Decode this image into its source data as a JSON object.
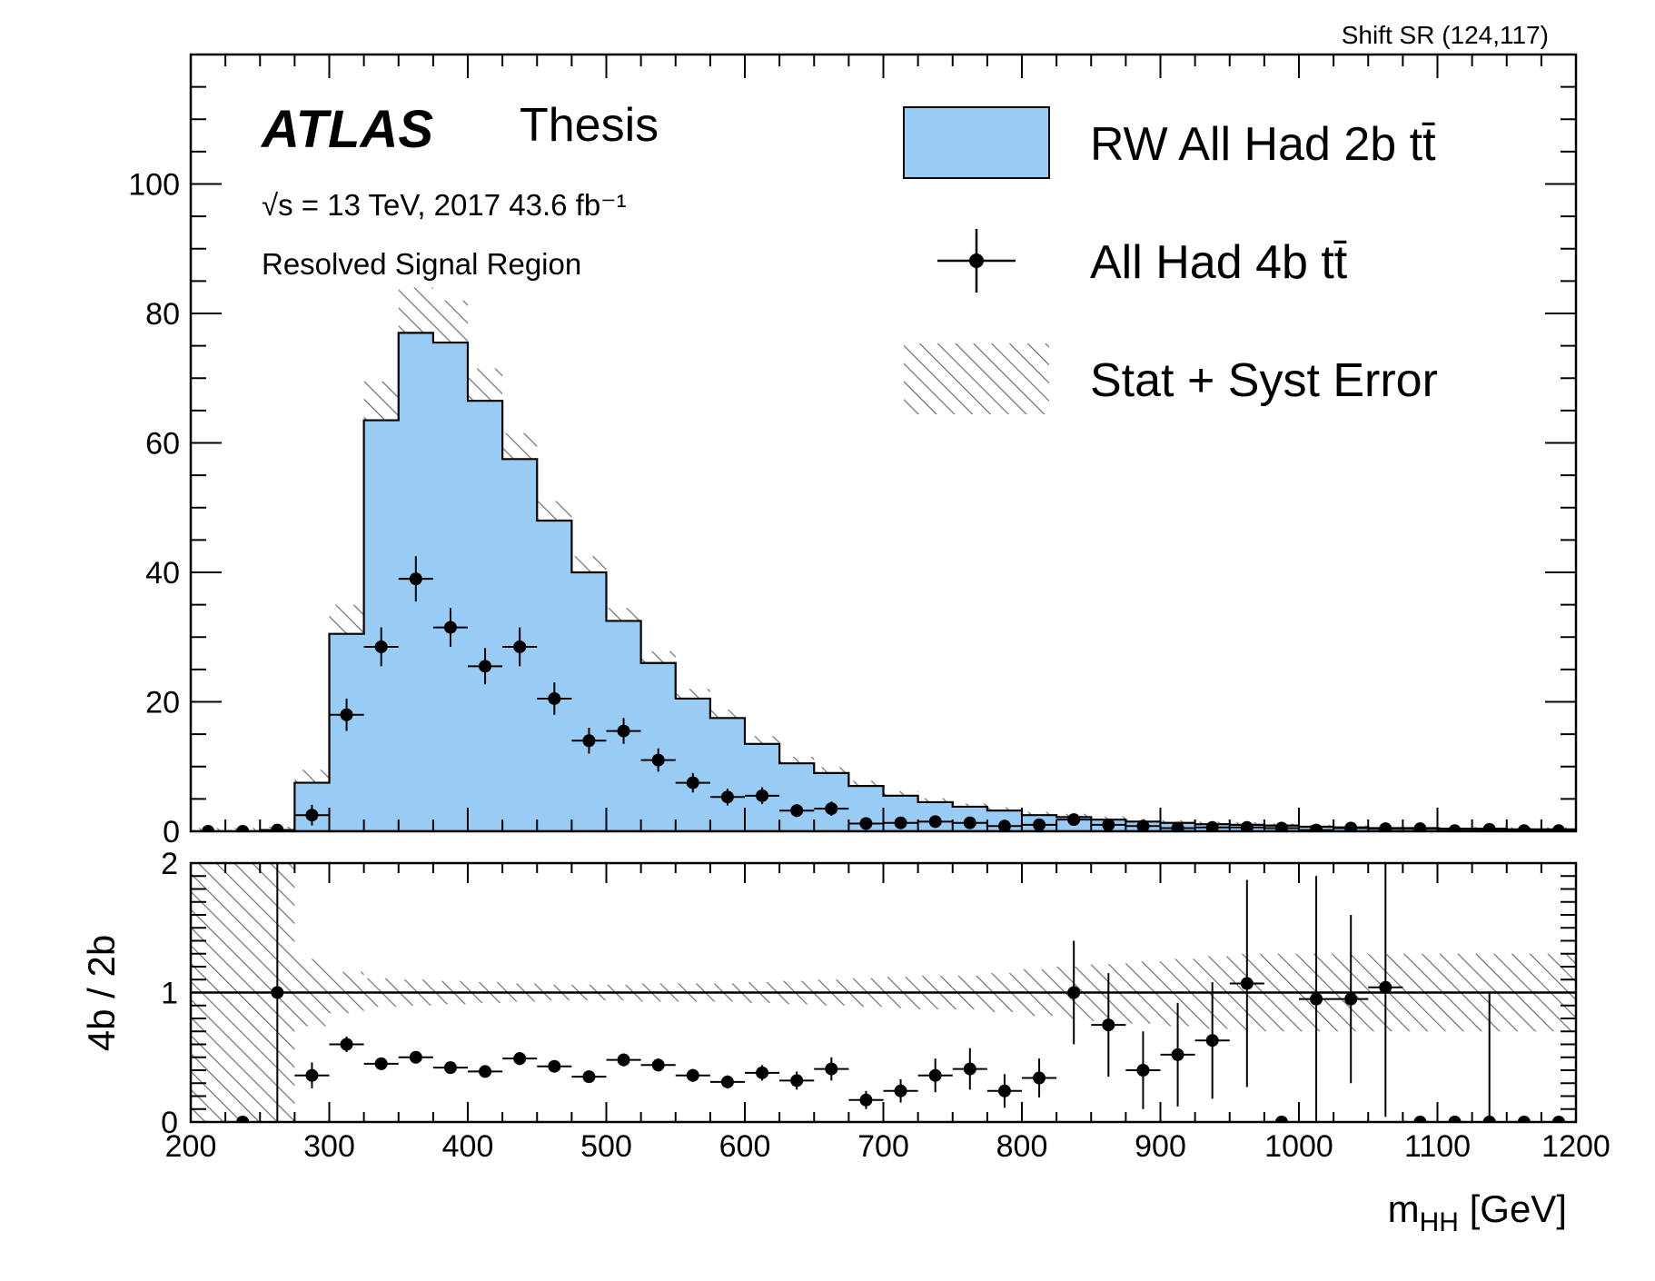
{
  "corner_label": "Shift SR (124,117)",
  "atlas": {
    "logo": "ATLAS",
    "tag": "Thesis"
  },
  "info": {
    "energy_line": "√s = 13 TeV, 2017 43.6 fb⁻¹",
    "region": "Resolved Signal Region"
  },
  "legend": [
    {
      "key": "background",
      "label": "RW All Had 2b tt̄"
    },
    {
      "key": "data",
      "label": "All Had 4b tt̄"
    },
    {
      "key": "uncertainty",
      "label": "Stat + Syst Error"
    }
  ],
  "colors": {
    "fill": "#99ccf5",
    "hatch": "#6e6e6e",
    "marker": "#000000"
  },
  "chart_data": [
    {
      "type": "histogram",
      "panel": "main",
      "xlabel": "",
      "ylabel": "",
      "xlim": [
        200,
        1200
      ],
      "ylim": [
        0,
        120
      ],
      "yticks": [
        0,
        20,
        40,
        60,
        80,
        100
      ],
      "bin_width": 25,
      "bin_edges_start": 200,
      "series": [
        {
          "name": "RW All Had 2b tt̄",
          "kind": "stacked-fill",
          "values": [
            0,
            0,
            0.2,
            7.5,
            30.5,
            63.5,
            77,
            75.5,
            66.5,
            57.5,
            48,
            40,
            32.5,
            26,
            20.5,
            17.5,
            13.5,
            10.5,
            9,
            7,
            5.5,
            4.5,
            3.8,
            3.2,
            2.5,
            2.2,
            1.8,
            1.5,
            1.3,
            1.1,
            1.0,
            0.9,
            0.7,
            0.6,
            0.5,
            0.5,
            0.4,
            0.4,
            0.3,
            0.3
          ],
          "uncertainty": [
            0.5,
            0.5,
            0.5,
            2,
            4.5,
            6,
            7,
            6.5,
            5,
            4,
            3,
            2.5,
            2,
            1.8,
            1.5,
            1.3,
            1.2,
            1,
            0.9,
            0.8,
            0.7,
            0.6,
            0.5,
            0.5,
            0.5,
            0.5,
            0.5,
            0.4,
            0.4,
            0.4,
            0.4,
            0.3,
            0.3,
            0.3,
            0.3,
            0.3,
            0.3,
            0.3,
            0.3,
            0.3
          ]
        },
        {
          "name": "All Had 4b tt̄",
          "kind": "points",
          "values": [
            0,
            0,
            0.2,
            2.5,
            18,
            28.5,
            39,
            31.5,
            25.5,
            28.5,
            20.5,
            14,
            15.5,
            11,
            7.5,
            5.3,
            5.5,
            3.2,
            3.5,
            1.2,
            1.3,
            1.5,
            1.3,
            0.8,
            1.0,
            1.8,
            1.0,
            0.8,
            0.5,
            0.6,
            0.6,
            0.5,
            0.2,
            0.5,
            0.4,
            0.4,
            0.1,
            0.3,
            0.1,
            0.1
          ],
          "errors": [
            0.3,
            0.3,
            0.4,
            1.6,
            2.5,
            3,
            3.5,
            3,
            2.8,
            3,
            2.5,
            2,
            2,
            1.8,
            1.5,
            1.3,
            1.3,
            1,
            1.1,
            0.7,
            0.7,
            0.8,
            0.7,
            0.6,
            0.6,
            0.8,
            0.6,
            0.5,
            0.4,
            0.4,
            0.4,
            0.4,
            0.3,
            0.4,
            0.3,
            0.3,
            0.2,
            0.3,
            0.2,
            0.2
          ]
        }
      ]
    },
    {
      "type": "scatter",
      "panel": "ratio",
      "xlabel": "m_HH [GeV]",
      "ylabel": "4b / 2b",
      "xlim": [
        200,
        1200
      ],
      "ylim": [
        0,
        2
      ],
      "yticks": [
        0,
        1,
        2
      ],
      "xticks": [
        200,
        300,
        400,
        500,
        600,
        700,
        800,
        900,
        1000,
        1100,
        1200
      ],
      "reference_line": 1,
      "band_halfwidth": [
        1.0,
        1.0,
        1.0,
        0.26,
        0.16,
        0.11,
        0.1,
        0.09,
        0.08,
        0.07,
        0.06,
        0.06,
        0.06,
        0.07,
        0.07,
        0.07,
        0.08,
        0.09,
        0.1,
        0.11,
        0.12,
        0.13,
        0.13,
        0.15,
        0.18,
        0.2,
        0.22,
        0.24,
        0.26,
        0.28,
        0.3,
        0.3,
        0.3,
        0.3,
        0.3,
        0.3,
        0.3,
        0.3,
        0.3,
        0.3
      ],
      "points": [
        {
          "x": 237.5,
          "y": 0.0,
          "err": 0.0
        },
        {
          "x": 262.5,
          "y": 1.0,
          "err": 1.0
        },
        {
          "x": 287.5,
          "y": 0.36,
          "err": 0.1
        },
        {
          "x": 312.5,
          "y": 0.6,
          "err": 0.06
        },
        {
          "x": 337.5,
          "y": 0.45,
          "err": 0.04
        },
        {
          "x": 362.5,
          "y": 0.5,
          "err": 0.04
        },
        {
          "x": 387.5,
          "y": 0.42,
          "err": 0.04
        },
        {
          "x": 412.5,
          "y": 0.39,
          "err": 0.04
        },
        {
          "x": 437.5,
          "y": 0.49,
          "err": 0.05
        },
        {
          "x": 462.5,
          "y": 0.43,
          "err": 0.04
        },
        {
          "x": 487.5,
          "y": 0.35,
          "err": 0.04
        },
        {
          "x": 512.5,
          "y": 0.48,
          "err": 0.05
        },
        {
          "x": 537.5,
          "y": 0.44,
          "err": 0.05
        },
        {
          "x": 562.5,
          "y": 0.36,
          "err": 0.05
        },
        {
          "x": 587.5,
          "y": 0.31,
          "err": 0.05
        },
        {
          "x": 612.5,
          "y": 0.38,
          "err": 0.06
        },
        {
          "x": 637.5,
          "y": 0.32,
          "err": 0.07
        },
        {
          "x": 662.5,
          "y": 0.41,
          "err": 0.09
        },
        {
          "x": 687.5,
          "y": 0.17,
          "err": 0.07
        },
        {
          "x": 712.5,
          "y": 0.24,
          "err": 0.09
        },
        {
          "x": 737.5,
          "y": 0.36,
          "err": 0.13
        },
        {
          "x": 762.5,
          "y": 0.41,
          "err": 0.16
        },
        {
          "x": 787.5,
          "y": 0.24,
          "err": 0.13
        },
        {
          "x": 812.5,
          "y": 0.34,
          "err": 0.15
        },
        {
          "x": 837.5,
          "y": 1.0,
          "err": 0.4
        },
        {
          "x": 862.5,
          "y": 0.75,
          "err": 0.4
        },
        {
          "x": 887.5,
          "y": 0.4,
          "err": 0.3
        },
        {
          "x": 912.5,
          "y": 0.52,
          "err": 0.4
        },
        {
          "x": 937.5,
          "y": 0.63,
          "err": 0.45
        },
        {
          "x": 962.5,
          "y": 1.07,
          "err": 0.8
        },
        {
          "x": 987.5,
          "y": 0.0,
          "err": 0.0
        },
        {
          "x": 1012.5,
          "y": 0.95,
          "err": 0.95
        },
        {
          "x": 1037.5,
          "y": 0.95,
          "err": 0.65
        },
        {
          "x": 1062.5,
          "y": 1.04,
          "err": 1.0
        },
        {
          "x": 1087.5,
          "y": 0.0,
          "err": 0.0
        },
        {
          "x": 1112.5,
          "y": 0.0,
          "err": 0.0
        },
        {
          "x": 1137.5,
          "y": 0.0,
          "err": 1.0
        },
        {
          "x": 1162.5,
          "y": 0.0,
          "err": 0.0
        },
        {
          "x": 1187.5,
          "y": 0.0,
          "err": 0.0
        }
      ]
    }
  ]
}
